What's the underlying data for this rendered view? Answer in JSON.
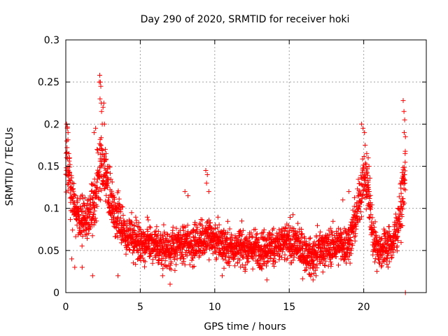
{
  "chart_data": {
    "type": "scatter",
    "title": "Day 290 of 2020, SRMTID for receiver hoki",
    "xlabel": "GPS time / hours",
    "ylabel": "SRMTID / TECUs",
    "xlim": [
      0,
      24.2
    ],
    "ylim": [
      0,
      0.3
    ],
    "grid": true,
    "marker": "+",
    "color": "#ff0000",
    "x_ticks": [
      0,
      5,
      10,
      15,
      20
    ],
    "x_tick_labels": [
      "0",
      "5",
      "10",
      "15",
      "20"
    ],
    "y_ticks": [
      0,
      0.05,
      0.1,
      0.15,
      0.2,
      0.25,
      0.3
    ],
    "y_tick_labels": [
      "0",
      "0.05",
      "0.1",
      "0.15",
      "0.2",
      "0.25",
      "0.3"
    ],
    "trend": {
      "x": [
        0,
        0.1,
        0.3,
        0.5,
        1.0,
        1.5,
        2.0,
        2.3,
        2.6,
        3.0,
        3.5,
        4.0,
        5.0,
        6.0,
        7.0,
        8.0,
        9.0,
        9.5,
        10.0,
        11.0,
        12.0,
        13.0,
        14.0,
        15.0,
        15.5,
        16.0,
        16.5,
        17.0,
        18.0,
        19.0,
        19.5,
        20.0,
        20.3,
        20.6,
        21.0,
        22.0,
        22.5,
        22.8
      ],
      "y": [
        0.14,
        0.16,
        0.13,
        0.11,
        0.09,
        0.09,
        0.11,
        0.15,
        0.14,
        0.11,
        0.085,
        0.07,
        0.06,
        0.055,
        0.052,
        0.058,
        0.06,
        0.07,
        0.062,
        0.055,
        0.053,
        0.052,
        0.055,
        0.06,
        0.058,
        0.048,
        0.04,
        0.052,
        0.055,
        0.058,
        0.09,
        0.14,
        0.12,
        0.07,
        0.05,
        0.06,
        0.1,
        0.14
      ]
    },
    "spread": 0.018,
    "samples_per_hour": 120,
    "points": [
      {
        "x": 0.05,
        "y": 0.2
      },
      {
        "x": 0.1,
        "y": 0.195
      },
      {
        "x": 0.15,
        "y": 0.19
      },
      {
        "x": 0.2,
        "y": 0.165
      },
      {
        "x": 0.25,
        "y": 0.16
      },
      {
        "x": 0.4,
        "y": 0.04
      },
      {
        "x": 0.6,
        "y": 0.03
      },
      {
        "x": 1.1,
        "y": 0.03
      },
      {
        "x": 1.8,
        "y": 0.02
      },
      {
        "x": 1.9,
        "y": 0.19
      },
      {
        "x": 2.0,
        "y": 0.195
      },
      {
        "x": 2.1,
        "y": 0.17
      },
      {
        "x": 2.25,
        "y": 0.25
      },
      {
        "x": 2.28,
        "y": 0.258
      },
      {
        "x": 2.32,
        "y": 0.25
      },
      {
        "x": 2.35,
        "y": 0.245
      },
      {
        "x": 2.3,
        "y": 0.23
      },
      {
        "x": 2.38,
        "y": 0.225
      },
      {
        "x": 2.4,
        "y": 0.215
      },
      {
        "x": 2.5,
        "y": 0.22
      },
      {
        "x": 2.55,
        "y": 0.225
      },
      {
        "x": 2.45,
        "y": 0.2
      },
      {
        "x": 2.6,
        "y": 0.2
      },
      {
        "x": 2.65,
        "y": 0.17
      },
      {
        "x": 2.7,
        "y": 0.165
      },
      {
        "x": 2.8,
        "y": 0.15
      },
      {
        "x": 2.9,
        "y": 0.15
      },
      {
        "x": 3.5,
        "y": 0.02
      },
      {
        "x": 6.5,
        "y": 0.02
      },
      {
        "x": 7.0,
        "y": 0.01
      },
      {
        "x": 8.0,
        "y": 0.12
      },
      {
        "x": 8.2,
        "y": 0.115
      },
      {
        "x": 9.4,
        "y": 0.145
      },
      {
        "x": 9.5,
        "y": 0.14
      },
      {
        "x": 9.45,
        "y": 0.13
      },
      {
        "x": 9.6,
        "y": 0.12
      },
      {
        "x": 10.5,
        "y": 0.02
      },
      {
        "x": 13.5,
        "y": 0.015
      },
      {
        "x": 16.6,
        "y": 0.015
      },
      {
        "x": 16.8,
        "y": 0.02
      },
      {
        "x": 18.6,
        "y": 0.11
      },
      {
        "x": 19.0,
        "y": 0.12
      },
      {
        "x": 19.85,
        "y": 0.2
      },
      {
        "x": 19.95,
        "y": 0.195
      },
      {
        "x": 20.05,
        "y": 0.19
      },
      {
        "x": 20.1,
        "y": 0.175
      },
      {
        "x": 20.2,
        "y": 0.165
      },
      {
        "x": 20.3,
        "y": 0.16
      },
      {
        "x": 20.35,
        "y": 0.15
      },
      {
        "x": 22.65,
        "y": 0.228
      },
      {
        "x": 22.7,
        "y": 0.215
      },
      {
        "x": 22.75,
        "y": 0.205
      },
      {
        "x": 22.72,
        "y": 0.19
      },
      {
        "x": 22.8,
        "y": 0.185
      },
      {
        "x": 22.78,
        "y": 0.165
      },
      {
        "x": 22.7,
        "y": 0.14
      },
      {
        "x": 22.6,
        "y": 0.13
      },
      {
        "x": 22.5,
        "y": 0.13
      },
      {
        "x": 22.8,
        "y": 0.0
      }
    ]
  }
}
